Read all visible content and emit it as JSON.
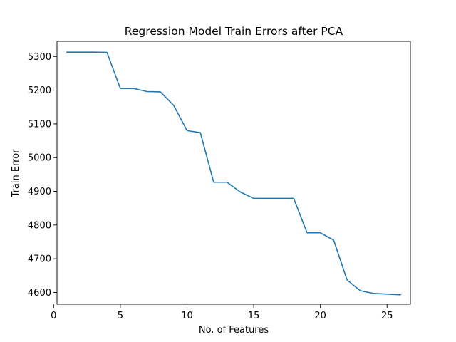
{
  "chart_data": {
    "type": "line",
    "title": "Regression Model Train Errors after PCA",
    "xlabel": "No. of Features",
    "ylabel": "Train Error",
    "xlim": [
      0.25,
      26.75
    ],
    "ylim": [
      4565,
      5345
    ],
    "xticks": [
      0,
      5,
      10,
      15,
      20,
      25
    ],
    "yticks": [
      4600,
      4700,
      4800,
      4900,
      5000,
      5100,
      5200,
      5300
    ],
    "grid": false,
    "line_color": "#1f77b4",
    "series": [
      {
        "x": [
          1,
          2,
          3,
          4,
          5,
          6,
          7,
          8,
          9,
          10,
          11,
          12,
          13,
          14,
          15,
          16,
          17,
          18,
          19,
          20,
          21,
          22,
          23,
          24,
          25,
          26
        ],
        "y": [
          5313,
          5313,
          5313,
          5312,
          5205,
          5205,
          5196,
          5195,
          5155,
          5080,
          5074,
          4927,
          4927,
          4898,
          4879,
          4879,
          4879,
          4879,
          4777,
          4777,
          4755,
          4637,
          4605,
          4597,
          4595,
          4593
        ]
      }
    ]
  }
}
